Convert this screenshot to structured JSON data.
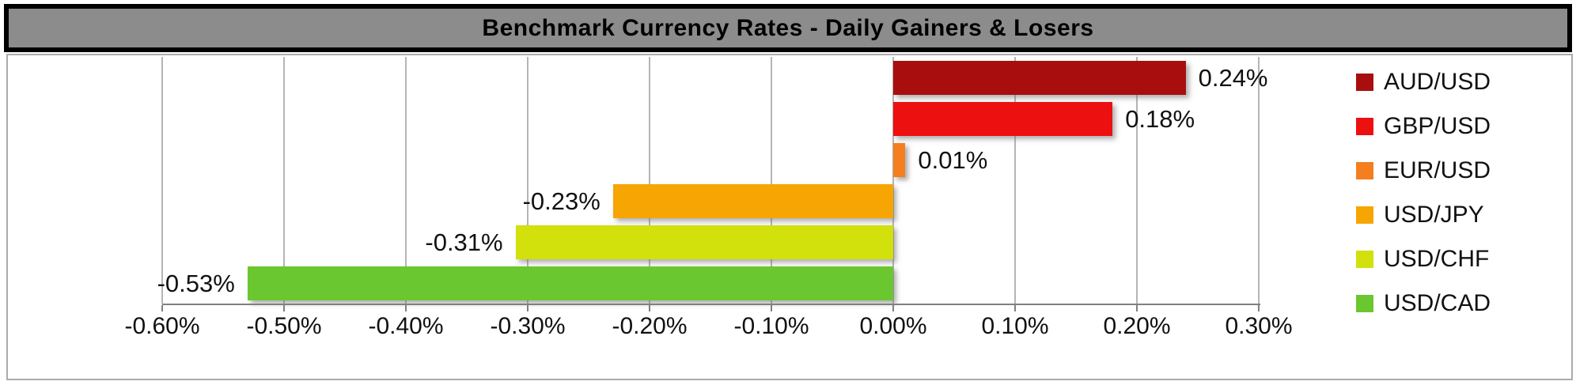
{
  "title": "Benchmark Currency Rates - Daily Gainers & Losers",
  "colors": {
    "title_bar_bg": "#8C8C8C",
    "title_border": "#000000",
    "frame_border": "#ABABAB",
    "gridline": "#B5B5B5",
    "axis_line": "#808080",
    "label_text": "#111111"
  },
  "chart_data": {
    "type": "bar",
    "orientation": "horizontal",
    "title": "Benchmark Currency Rates - Daily Gainers & Losers",
    "categories": [
      "AUD/USD",
      "GBP/USD",
      "EUR/USD",
      "USD/JPY",
      "USD/CHF",
      "USD/CAD"
    ],
    "values": [
      0.24,
      0.18,
      0.01,
      -0.23,
      -0.31,
      -0.53
    ],
    "value_labels": [
      "0.24%",
      "0.18%",
      "0.01%",
      "-0.23%",
      "-0.31%",
      "-0.53%"
    ],
    "bar_colors": [
      "#A80E0E",
      "#EC1010",
      "#F57E1E",
      "#F6A503",
      "#D2E00C",
      "#6BC72F"
    ],
    "xlim": [
      -0.6,
      0.3
    ],
    "x_ticks": [
      -0.6,
      -0.5,
      -0.4,
      -0.3,
      -0.2,
      -0.1,
      0.0,
      0.1,
      0.2,
      0.3
    ],
    "x_tick_labels": [
      "-0.60%",
      "-0.50%",
      "-0.40%",
      "-0.30%",
      "-0.20%",
      "-0.10%",
      "0.00%",
      "0.10%",
      "0.20%",
      "0.30%"
    ],
    "grid": "vertical-gridlines-on",
    "legend": {
      "position": "right",
      "labels": [
        "AUD/USD",
        "GBP/USD",
        "EUR/USD",
        "USD/JPY",
        "USD/CHF",
        "USD/CAD"
      ]
    }
  }
}
